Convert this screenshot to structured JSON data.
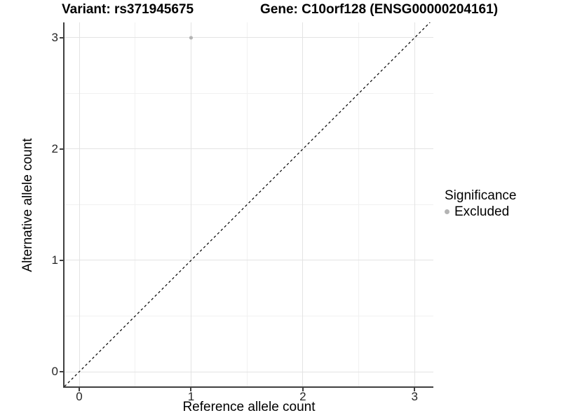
{
  "titles": {
    "variant": "Variant: rs371945675",
    "gene": "Gene: C10orf128 (ENSG00000204161)"
  },
  "axes": {
    "x": {
      "label": "Reference allele count"
    },
    "y": {
      "label": "Alternative allele count"
    }
  },
  "legend": {
    "title": "Significance",
    "items": [
      {
        "label": "Excluded",
        "color": "#b4b4b4"
      }
    ]
  },
  "colors": {
    "axis_line": "#404040",
    "grid_major": "#e3e3e3",
    "grid_minor": "#f1f1f1",
    "point": "#b4b4b4",
    "dashed_line": "#000000"
  },
  "chart_data": {
    "type": "scatter",
    "title_left": "Variant: rs371945675",
    "title_right": "Gene: C10orf128 (ENSG00000204161)",
    "xlabel": "Reference allele count",
    "ylabel": "Alternative allele count",
    "xlim": [
      -0.132,
      3.168
    ],
    "ylim": [
      -0.132,
      3.138
    ],
    "x_ticks": [
      0,
      1,
      2,
      3
    ],
    "y_ticks": [
      0,
      1,
      2,
      3
    ],
    "grid": "major+minor",
    "legend_position": "right",
    "legend_title": "Significance",
    "series": [
      {
        "name": "Excluded",
        "color": "#b4b4b4",
        "points": [
          {
            "x": 1,
            "y": 3
          }
        ]
      }
    ],
    "annotations": [
      {
        "type": "identity_line",
        "equation": "y = x",
        "style": "dashed",
        "color": "#000000"
      }
    ]
  }
}
